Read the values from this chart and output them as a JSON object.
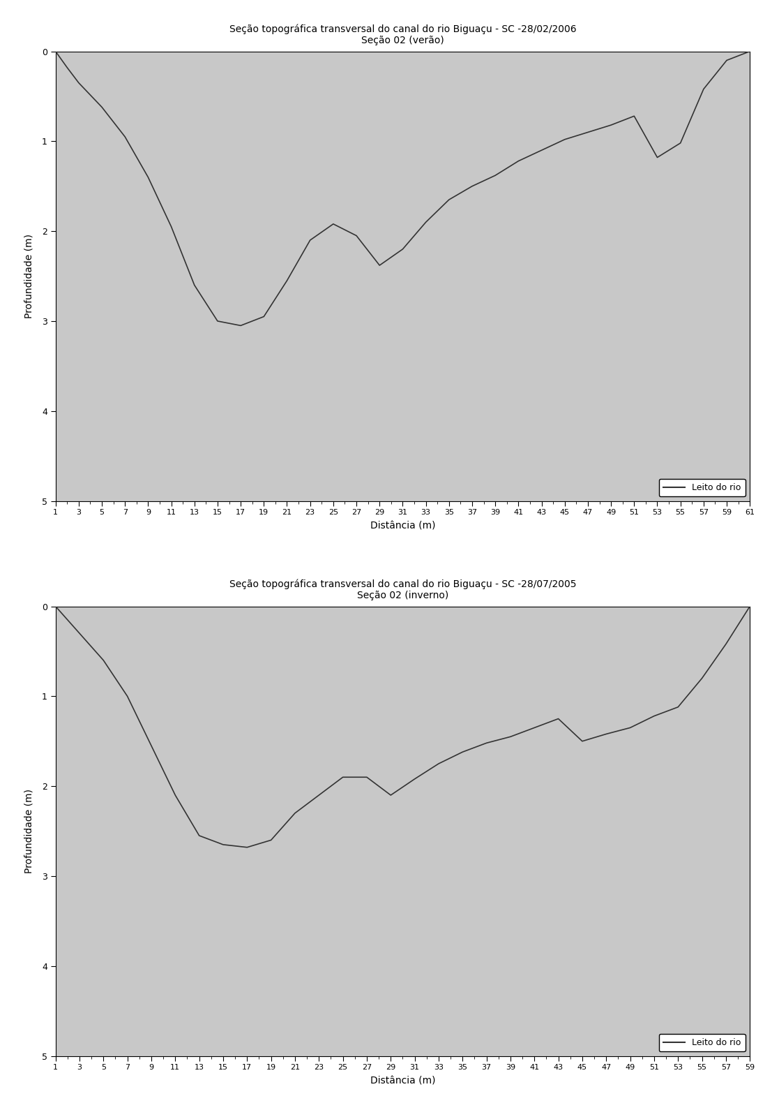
{
  "title1": "Seção topográfica transversal do canal do rio Biguaçu - SC -28/02/2006",
  "subtitle1": "Seção 02 (verão)",
  "title2": "Seção topográfica transversal do canal do rio Biguaçu - SC -28/07/2005",
  "subtitle2": "Seção 02 (inverno)",
  "xlabel": "Distância (m)",
  "ylabel": "Profundidade (m)",
  "legend_label": "Leito do rio",
  "yticks": [
    0,
    1,
    2,
    3,
    4,
    5
  ],
  "line_color": "#333333",
  "fill_color": "#c8c8c8",
  "chart1_x": [
    1,
    2,
    3,
    5,
    7,
    9,
    11,
    13,
    15,
    17,
    19,
    21,
    23,
    25,
    27,
    29,
    31,
    33,
    35,
    37,
    39,
    41,
    43,
    45,
    47,
    49,
    51,
    53,
    55,
    57,
    59,
    61
  ],
  "chart1_y": [
    0.0,
    0.18,
    0.35,
    0.62,
    0.95,
    1.4,
    1.95,
    2.6,
    3.0,
    3.05,
    2.95,
    2.55,
    2.1,
    1.92,
    2.05,
    2.38,
    2.2,
    1.9,
    1.65,
    1.5,
    1.38,
    1.22,
    1.1,
    0.98,
    0.9,
    0.82,
    0.72,
    1.18,
    1.02,
    0.42,
    0.1,
    0.0
  ],
  "chart1_xticks": [
    1,
    3,
    5,
    7,
    9,
    11,
    13,
    15,
    17,
    19,
    21,
    23,
    25,
    27,
    29,
    31,
    33,
    35,
    37,
    39,
    41,
    43,
    45,
    47,
    49,
    51,
    53,
    55,
    57,
    59,
    61
  ],
  "chart2_x": [
    1,
    2,
    3,
    5,
    7,
    9,
    11,
    13,
    15,
    17,
    19,
    21,
    23,
    25,
    27,
    29,
    31,
    33,
    35,
    37,
    39,
    41,
    43,
    45,
    47,
    49,
    51,
    53,
    55,
    57,
    59
  ],
  "chart2_y": [
    0.0,
    0.15,
    0.3,
    0.6,
    1.0,
    1.55,
    2.1,
    2.55,
    2.65,
    2.68,
    2.6,
    2.3,
    2.1,
    1.9,
    1.9,
    2.1,
    1.92,
    1.75,
    1.62,
    1.52,
    1.45,
    1.35,
    1.25,
    1.5,
    1.42,
    1.35,
    1.22,
    1.12,
    0.8,
    0.42,
    0.0
  ],
  "chart2_xticks": [
    1,
    3,
    5,
    7,
    9,
    11,
    13,
    15,
    17,
    19,
    21,
    23,
    25,
    27,
    29,
    31,
    33,
    35,
    37,
    39,
    41,
    43,
    45,
    47,
    49,
    51,
    53,
    55,
    57,
    59
  ]
}
